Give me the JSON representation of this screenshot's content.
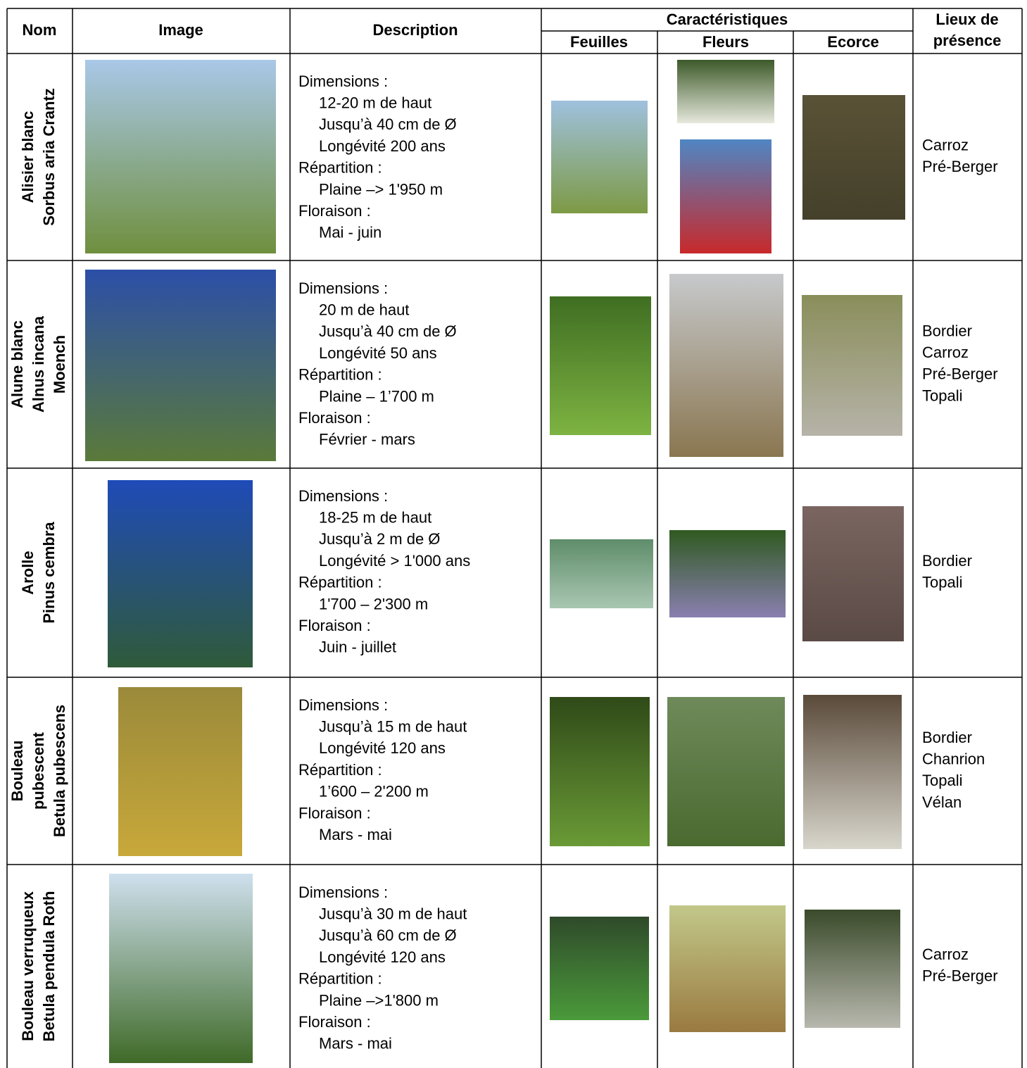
{
  "header": {
    "nom": "Nom",
    "image": "Image",
    "description": "Description",
    "caracteristiques": "Caractéristiques",
    "feuilles": "Feuilles",
    "fleurs": "Fleurs",
    "ecorce": "Ecorce",
    "lieux": [
      "Lieux de",
      "présence"
    ]
  },
  "table": {
    "rows": [
      {
        "name": [
          "Alisier blanc",
          "Sorbus aria Crantz"
        ],
        "description": [
          {
            "label": "Dimensions :",
            "items": [
              "12-20 m de haut",
              "Jusqu’à 40 cm de Ø",
              "Longévité 200 ans"
            ]
          },
          {
            "label": "Répartition :",
            "items": [
              "Plaine –> 1'950 m"
            ]
          },
          {
            "label": "Floraison :",
            "items": [
              "Mai - juin"
            ]
          }
        ],
        "lieux": [
          "Carroz",
          "Pré-Berger"
        ]
      },
      {
        "name": [
          "Alune blanc",
          "Alnus incana",
          "Moench"
        ],
        "description": [
          {
            "label": "Dimensions :",
            "items": [
              "20 m de haut",
              "Jusqu’à 40 cm de Ø",
              "Longévité 50 ans"
            ]
          },
          {
            "label": "Répartition :",
            "items": [
              "Plaine – 1’700 m"
            ]
          },
          {
            "label": "Floraison :",
            "items": [
              "Février - mars"
            ]
          }
        ],
        "lieux": [
          "Bordier",
          "Carroz",
          "Pré-Berger",
          "Topali"
        ]
      },
      {
        "name": [
          "Arolle",
          "Pinus cembra"
        ],
        "description": [
          {
            "label": "Dimensions :",
            "items": [
              "18-25 m de haut",
              "Jusqu’à 2 m de Ø",
              "Longévité > 1'000 ans"
            ]
          },
          {
            "label": "Répartition :",
            "items": [
              "1'700 – 2'300 m"
            ]
          },
          {
            "label": "Floraison :",
            "items": [
              "Juin - juillet"
            ]
          }
        ],
        "lieux": [
          "Bordier",
          "Topali"
        ]
      },
      {
        "name": [
          "Bouleau",
          "pubescent",
          "Betula pubescens"
        ],
        "description": [
          {
            "label": "Dimensions :",
            "items": [
              "Jusqu’à 15 m de haut",
              "Longévité 120 ans"
            ]
          },
          {
            "label": "Répartition :",
            "items": [
              "1’600 – 2'200 m"
            ]
          },
          {
            "label": "Floraison :",
            "items": [
              "Mars - mai"
            ]
          }
        ],
        "lieux": [
          "Bordier",
          "Chanrion",
          "Topali",
          "Vélan"
        ]
      },
      {
        "name": [
          "Bouleau verruqueux",
          "Betula pendula Roth"
        ],
        "description": [
          {
            "label": "Dimensions :",
            "items": [
              "Jusqu’à 30 m de haut",
              "Jusqu’à 60 cm de Ø",
              "Longévité 120 ans"
            ]
          },
          {
            "label": "Répartition :",
            "items": [
              "Plaine –>1'800 m"
            ]
          },
          {
            "label": "Floraison :",
            "items": [
              "Mars - mai"
            ]
          }
        ],
        "lieux": [
          "Carroz",
          "Pré-Berger"
        ]
      }
    ]
  }
}
